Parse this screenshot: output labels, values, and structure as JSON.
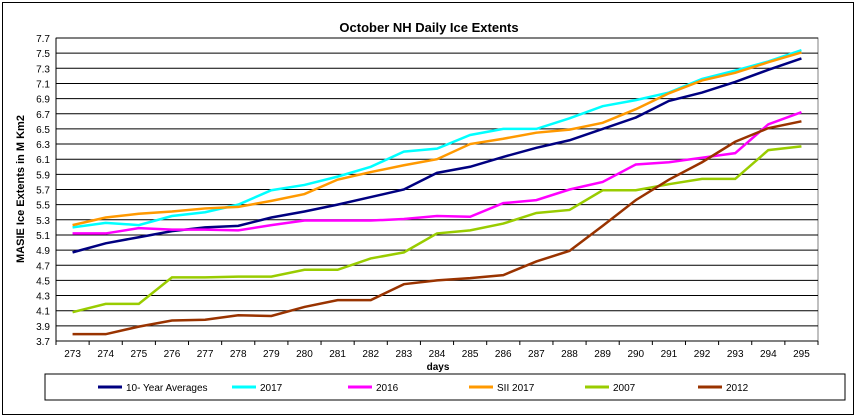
{
  "chart_data": {
    "type": "line",
    "title": "October NH Daily  Ice Extents",
    "xlabel": "days",
    "ylabel": "MASIE Ice Extents in M Km2",
    "ylim": [
      3.7,
      7.7
    ],
    "yticks": [
      "3.7",
      "3.9",
      "4.1",
      "4.3",
      "4.5",
      "4.7",
      "4.9",
      "5.1",
      "5.3",
      "5.5",
      "5.7",
      "5.9",
      "6.1",
      "6.3",
      "6.5",
      "6.7",
      "6.9",
      "7.1",
      "7.3",
      "7.5",
      "7.7"
    ],
    "x": [
      "273",
      "274",
      "275",
      "276",
      "277",
      "278",
      "279",
      "280",
      "281",
      "282",
      "283",
      "284",
      "285",
      "286",
      "287",
      "288",
      "289",
      "290",
      "291",
      "292",
      "293",
      "294",
      "295"
    ],
    "grid": true,
    "legend_position": "bottom",
    "series": [
      {
        "name": "10- Year Averages",
        "color": "#000080",
        "values": [
          4.87,
          4.99,
          5.07,
          5.15,
          5.2,
          5.22,
          5.33,
          5.41,
          5.5,
          5.6,
          5.7,
          5.92,
          6.0,
          6.13,
          6.25,
          6.35,
          6.5,
          6.65,
          6.87,
          6.98,
          7.12,
          7.28,
          7.43
        ]
      },
      {
        "name": "2017",
        "color": "#00FFFF",
        "values": [
          5.2,
          5.26,
          5.23,
          5.35,
          5.4,
          5.5,
          5.69,
          5.76,
          5.87,
          6.0,
          6.2,
          6.24,
          6.42,
          6.5,
          6.5,
          6.64,
          6.8,
          6.88,
          6.98,
          7.16,
          7.27,
          7.39,
          7.54
        ]
      },
      {
        "name": "2016",
        "color": "#FF00FF",
        "values": [
          5.12,
          5.12,
          5.19,
          5.17,
          5.17,
          5.16,
          5.23,
          5.29,
          5.29,
          5.29,
          5.31,
          5.35,
          5.34,
          5.52,
          5.56,
          5.7,
          5.8,
          6.03,
          6.06,
          6.12,
          6.18,
          6.56,
          6.72
        ]
      },
      {
        "name": "SII 2017",
        "color": "#FF9900",
        "values": [
          5.23,
          5.33,
          5.38,
          5.41,
          5.45,
          5.47,
          5.55,
          5.64,
          5.83,
          5.93,
          6.02,
          6.1,
          6.3,
          6.37,
          6.45,
          6.49,
          6.58,
          6.76,
          6.97,
          7.14,
          7.24,
          7.38,
          7.51
        ]
      },
      {
        "name": "2007",
        "color": "#99CC00",
        "values": [
          4.08,
          4.19,
          4.19,
          4.54,
          4.54,
          4.55,
          4.55,
          4.64,
          4.64,
          4.79,
          4.87,
          5.12,
          5.16,
          5.25,
          5.39,
          5.43,
          5.69,
          5.69,
          5.77,
          5.84,
          5.84,
          6.22,
          6.27
        ]
      },
      {
        "name": "2012",
        "color": "#993300",
        "values": [
          3.79,
          3.79,
          3.89,
          3.97,
          3.98,
          4.04,
          4.03,
          4.15,
          4.24,
          4.24,
          4.45,
          4.5,
          4.53,
          4.57,
          4.75,
          4.89,
          5.22,
          5.56,
          5.83,
          6.06,
          6.33,
          6.51,
          6.6
        ]
      }
    ]
  }
}
